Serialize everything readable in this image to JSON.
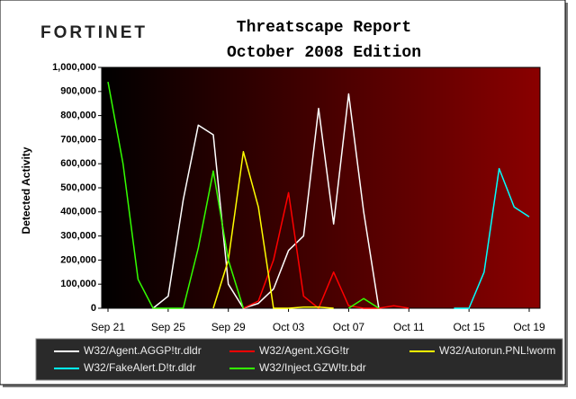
{
  "logo": "FORTINET",
  "chart_data": {
    "type": "line",
    "title": "Threatscape Report",
    "subtitle": "October 2008 Edition",
    "y_label": "Detected Activity",
    "categories": [
      "Sep 21",
      null,
      null,
      null,
      "Sep 25",
      null,
      null,
      null,
      "Sep 29",
      null,
      null,
      null,
      "Oct 03",
      null,
      null,
      null,
      "Oct 07",
      null,
      null,
      null,
      "Oct 11",
      null,
      null,
      null,
      "Oct 15",
      null,
      null,
      null,
      "Oct 19"
    ],
    "ylim": [
      0,
      1000000
    ],
    "yticks": [
      0,
      {
        "value": 100000,
        "label": "100,000"
      },
      {
        "value": 200000,
        "label": "200,000"
      },
      {
        "value": 300000,
        "label": "300,000"
      },
      {
        "value": 400000,
        "label": "400,000"
      },
      {
        "value": 500000,
        "label": "500,000"
      },
      {
        "value": 600000,
        "label": "600,000"
      },
      {
        "value": 700000,
        "label": "700,000"
      },
      {
        "value": 800000,
        "label": "800,000"
      },
      {
        "value": 900000,
        "label": "900,000"
      },
      {
        "value": 1000000,
        "label": "1,000,000"
      }
    ],
    "series": [
      {
        "name": "W32/Agent.AGGP!tr.dldr",
        "color": "#ffffff",
        "values": [
          null,
          null,
          null,
          0,
          50000,
          450000,
          760000,
          720000,
          100000,
          0,
          20000,
          80000,
          240000,
          300000,
          830000,
          350000,
          890000,
          400000,
          0,
          null,
          null,
          null,
          null,
          null,
          null,
          null,
          null,
          null,
          null
        ]
      },
      {
        "name": "W32/Agent.XGG!tr",
        "color": "#ff0000",
        "values": [
          null,
          null,
          null,
          null,
          null,
          null,
          null,
          null,
          null,
          0,
          30000,
          200000,
          480000,
          50000,
          0,
          150000,
          10000,
          0,
          0,
          10000,
          0,
          null,
          null,
          null,
          null,
          null,
          null,
          null,
          null
        ]
      },
      {
        "name": "W32/Autorun.PNL!worm",
        "color": "#ffff00",
        "values": [
          null,
          null,
          null,
          null,
          null,
          null,
          null,
          0,
          200000,
          650000,
          420000,
          0,
          0,
          5000,
          5000,
          0,
          null,
          null,
          null,
          null,
          null,
          null,
          null,
          null,
          null,
          null,
          null,
          null,
          null
        ]
      },
      {
        "name": "W32/FakeAlert.D!tr.dldr",
        "color": "#00ffff",
        "values": [
          null,
          null,
          null,
          null,
          null,
          null,
          null,
          null,
          null,
          null,
          null,
          null,
          null,
          null,
          null,
          null,
          null,
          null,
          null,
          null,
          null,
          null,
          null,
          0,
          0,
          150000,
          580000,
          420000,
          380000
        ]
      },
      {
        "name": "W32/Inject.GZW!tr.bdr",
        "color": "#33ff00",
        "values": [
          940000,
          600000,
          120000,
          0,
          0,
          0,
          250000,
          570000,
          200000,
          0,
          null,
          null,
          null,
          null,
          null,
          null,
          0,
          40000,
          0,
          null,
          null,
          null,
          null,
          null,
          null,
          null,
          null,
          null,
          null
        ]
      }
    ]
  }
}
